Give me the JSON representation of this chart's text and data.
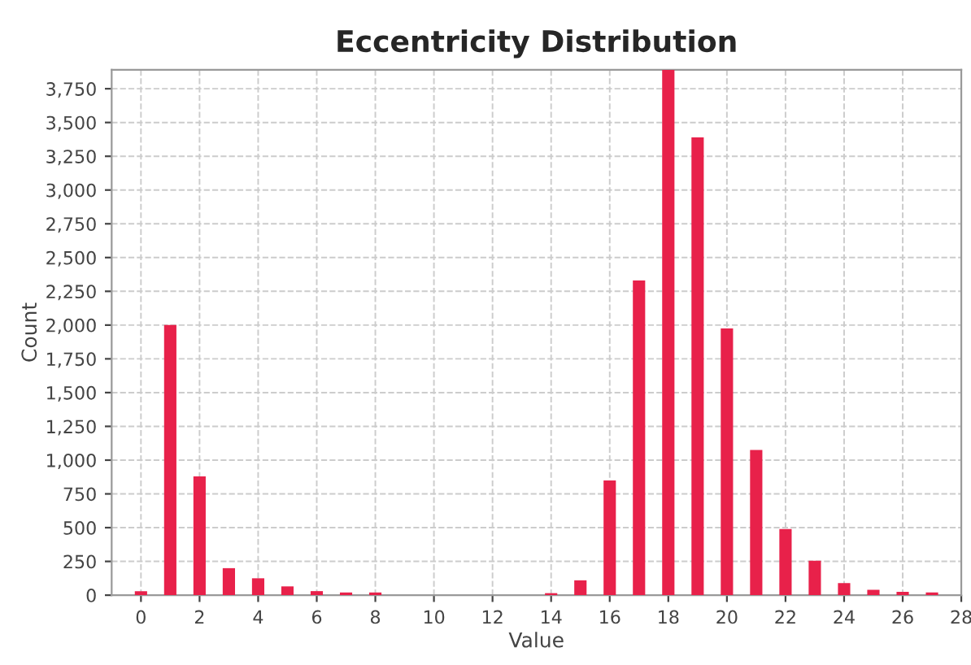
{
  "chart_data": {
    "type": "bar",
    "title": "Eccentricity Distribution",
    "xlabel": "Value",
    "ylabel": "Count",
    "x": [
      0,
      1,
      2,
      3,
      4,
      5,
      6,
      7,
      8,
      9,
      10,
      11,
      12,
      13,
      14,
      15,
      16,
      17,
      18,
      19,
      20,
      21,
      22,
      23,
      24,
      25,
      26,
      27
    ],
    "values": [
      30,
      2000,
      880,
      200,
      125,
      65,
      30,
      20,
      20,
      0,
      0,
      0,
      0,
      0,
      15,
      110,
      850,
      2330,
      3890,
      3390,
      1975,
      1075,
      490,
      255,
      90,
      40,
      25,
      20
    ],
    "color": "#e8214a",
    "xlim": [
      -1,
      28
    ],
    "xticks": [
      0,
      2,
      4,
      6,
      8,
      10,
      12,
      14,
      16,
      18,
      20,
      22,
      24,
      26,
      28
    ],
    "ylim": [
      0,
      3890
    ],
    "yticks": [
      {
        "value": 0,
        "label": "0"
      },
      {
        "value": 250,
        "label": "250"
      },
      {
        "value": 500,
        "label": "500"
      },
      {
        "value": 750,
        "label": "750"
      },
      {
        "value": 1000,
        "label": "1,000"
      },
      {
        "value": 1250,
        "label": "1,250"
      },
      {
        "value": 1500,
        "label": "1,500"
      },
      {
        "value": 1750,
        "label": "1,750"
      },
      {
        "value": 2000,
        "label": "2,000"
      },
      {
        "value": 2250,
        "label": "2,250"
      },
      {
        "value": 2500,
        "label": "2,500"
      },
      {
        "value": 2750,
        "label": "2,750"
      },
      {
        "value": 3000,
        "label": "3,000"
      },
      {
        "value": 3250,
        "label": "3,250"
      },
      {
        "value": 3500,
        "label": "3,500"
      },
      {
        "value": 3750,
        "label": "3,750"
      }
    ],
    "grid": true,
    "legend": false
  }
}
